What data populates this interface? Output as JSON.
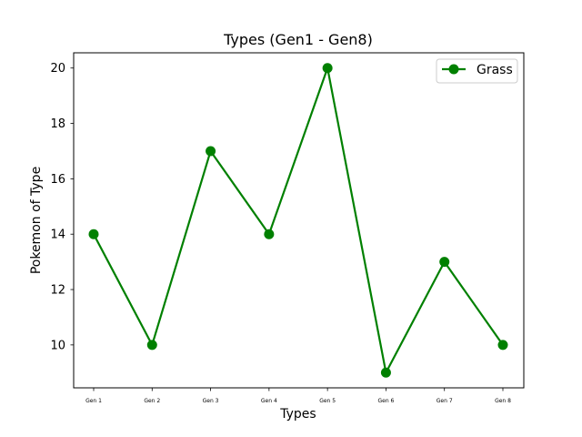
{
  "chart_data": {
    "type": "line",
    "title": "Types (Gen1 - Gen8)",
    "xlabel": "Types",
    "ylabel": "Pokemon of Type",
    "categories": [
      "Gen 1",
      "Gen 2",
      "Gen 3",
      "Gen 4",
      "Gen 5",
      "Gen 6",
      "Gen 7",
      "Gen 8"
    ],
    "series": [
      {
        "name": "Grass",
        "values": [
          14,
          10,
          17,
          14,
          20,
          9,
          13,
          10
        ],
        "color": "#008000"
      }
    ],
    "ylim": [
      8.45,
      20.55
    ],
    "yticks": [
      10,
      12,
      14,
      16,
      18,
      20
    ],
    "grid": false,
    "legend_position": "top-right"
  }
}
